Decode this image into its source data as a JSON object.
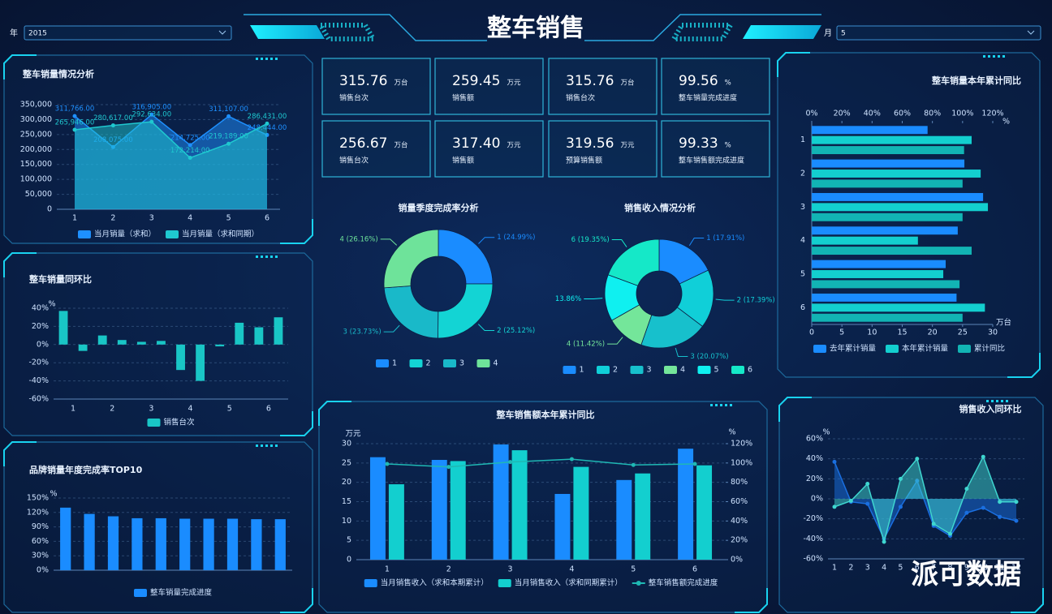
{
  "header": {
    "title": "整车销售"
  },
  "filters": [
    {
      "label": "年",
      "value": "2015"
    },
    {
      "label": "月",
      "value": "5"
    }
  ],
  "kpis": [
    {
      "value": "315.76",
      "unit": "万台",
      "label": "销售台次"
    },
    {
      "value": "259.45",
      "unit": "万元",
      "label": "销售额"
    },
    {
      "value": "315.76",
      "unit": "万台",
      "label": "销售台次"
    },
    {
      "value": "99.56",
      "unit": "%",
      "label": "整车销量完成进度"
    },
    {
      "value": "256.67",
      "unit": "万台",
      "label": "销售台次"
    },
    {
      "value": "317.40",
      "unit": "万元",
      "label": "销售额"
    },
    {
      "value": "319.56",
      "unit": "万元",
      "label": "预算销售额"
    },
    {
      "value": "99.33",
      "unit": "%",
      "label": "整车销售额完成进度"
    }
  ],
  "chart_data": [
    {
      "type": "area",
      "title": "整车销量情况分析",
      "categories": [
        "1",
        "2",
        "3",
        "4",
        "5",
        "6"
      ],
      "series": [
        {
          "name": "当月销量（求和）",
          "color": "#1e90ff",
          "values": [
            311766,
            208075,
            316905,
            214725,
            311107,
            248444
          ],
          "value_labels": [
            "311,766.00",
            "208,075.00",
            "316,905.00",
            "214,725.00",
            "311,107.00",
            "248,444.00"
          ]
        },
        {
          "name": "当月销量（求和同期）",
          "color": "#1fc8d0",
          "values": [
            265946,
            280617,
            292634,
            172214,
            219189,
            286431
          ],
          "value_labels": [
            "265,946.00",
            "280,617.00",
            "292,634.00",
            "172,214.00",
            "219,189.00",
            "286,431.00"
          ]
        }
      ],
      "ylim": [
        0,
        350000
      ],
      "yticks": [
        0,
        {
          "value": 50000,
          "label": "50,000"
        },
        {
          "value": 100000,
          "label": "100,000"
        },
        {
          "value": 150000,
          "label": "150,000"
        },
        {
          "value": 200000,
          "label": "200,000"
        },
        {
          "value": 250000,
          "label": "250,000"
        },
        {
          "value": 300000,
          "label": "300,000"
        },
        {
          "value": 350000,
          "label": "350,000"
        }
      ]
    },
    {
      "type": "bar",
      "title": "整车销量同环比",
      "categories": [
        "1",
        null,
        "2",
        null,
        "3",
        null,
        "4",
        null,
        "5",
        null,
        "6",
        null
      ],
      "series": [
        {
          "name": "销售台次",
          "color": "#19c6c6",
          "values": [
            37,
            -7,
            10,
            5,
            3,
            4,
            -28,
            -40,
            -2,
            24,
            19,
            30
          ]
        }
      ],
      "ylim": [
        -60,
        40
      ],
      "yticks": [
        {
          "value": -60,
          "label": "-60%"
        },
        {
          "value": -40,
          "label": "-40%"
        },
        {
          "value": -20,
          "label": "-20%"
        },
        {
          "value": 0,
          "label": "0%"
        },
        {
          "value": 20,
          "label": "20%"
        },
        {
          "value": 40,
          "label": "40%"
        }
      ],
      "y_label": "%"
    },
    {
      "type": "bar",
      "title": "品牌销量年度完成率TOP10",
      "categories": [
        null,
        null,
        null,
        null,
        null,
        null,
        null,
        null,
        null,
        null
      ],
      "series": [
        {
          "name": "整车销量完成进度",
          "color": "#1a8cff",
          "values": [
            130,
            117,
            112,
            108,
            108,
            107,
            107,
            107,
            106,
            106
          ]
        }
      ],
      "ylim": [
        0,
        150
      ],
      "yticks": [
        {
          "value": 0,
          "label": "0%"
        },
        {
          "value": 30,
          "label": "30%"
        },
        {
          "value": 60,
          "label": "60%"
        },
        {
          "value": 90,
          "label": "90%"
        },
        {
          "value": 120,
          "label": "120%"
        },
        {
          "value": 150,
          "label": "150%"
        }
      ],
      "y_label": "%"
    },
    {
      "type": "pie",
      "title": "销量季度完成率分析",
      "categories": [
        "1",
        "2",
        "3",
        "4"
      ],
      "values": [
        24.99,
        25.12,
        23.73,
        26.16
      ],
      "value_labels": [
        "1 (24.99%)",
        "2 (25.12%)",
        "3 (23.73%)",
        "4 (26.16%)"
      ],
      "colors": [
        "#1a8cff",
        "#13d4d4",
        "#19b9c9",
        "#6ee39a"
      ]
    },
    {
      "type": "pie",
      "title": "销售收入情况分析",
      "categories": [
        "1",
        "2",
        "3",
        "4",
        "5",
        "6"
      ],
      "values": [
        17.91,
        17.39,
        20.07,
        11.42,
        13.86,
        19.35
      ],
      "value_labels": [
        "1 (17.91%)",
        "2 (17.39%)",
        "3 (20.07%)",
        "4 (11.42%)",
        "13.86%",
        "6 (19.35%)"
      ],
      "colors": [
        "#1a8cff",
        "#10cfd8",
        "#17c0cc",
        "#74e69a",
        "#0ff0f0",
        "#15e8c8"
      ]
    },
    {
      "type": "barh",
      "title": "整车销量本年累计同比",
      "categories": [
        "1",
        "2",
        "3",
        "4",
        "5",
        "6"
      ],
      "series": [
        {
          "name": "去年累计销量",
          "color": "#1a8cff",
          "values": [
            19.2,
            25.3,
            28.4,
            24.2,
            22.2,
            24
          ]
        },
        {
          "name": "本年累计销量",
          "color": "#13cfcf",
          "values": [
            26.5,
            28,
            29.2,
            17.6,
            21.8,
            28.7
          ]
        },
        {
          "name": "累计同比",
          "color": "#12b4b4",
          "axis": "x2",
          "values": [
            101,
            100,
            100,
            106,
            98,
            100
          ]
        }
      ],
      "xlim": [
        0,
        30
      ],
      "xticks": [
        0,
        5,
        10,
        15,
        20,
        25,
        30
      ],
      "x2lim": [
        0,
        120
      ],
      "x2ticks": [
        {
          "value": 0,
          "label": "0%"
        },
        {
          "value": 20,
          "label": "20%"
        },
        {
          "value": 40,
          "label": "40%"
        },
        {
          "value": 60,
          "label": "60%"
        },
        {
          "value": 80,
          "label": "80%"
        },
        {
          "value": 100,
          "label": "100%"
        },
        {
          "value": 120,
          "label": "120%"
        }
      ],
      "x_label": "万台",
      "x2_label": "%"
    },
    {
      "type": "bar",
      "title": "整车销售额本年累计同比",
      "categories": [
        "1",
        "2",
        "3",
        "4",
        "5",
        "6"
      ],
      "series": [
        {
          "name": "当月销售收入（求和本期累计）",
          "color": "#1a8cff",
          "values": [
            26.5,
            25.8,
            29.8,
            17,
            20.6,
            28.7
          ]
        },
        {
          "name": "当月销售收入（求和同期累计）",
          "color": "#13cfcf",
          "values": [
            19.5,
            25.5,
            28.3,
            24,
            22.3,
            24.4
          ]
        },
        {
          "name": "整车销售额完成进度",
          "type": "line",
          "axis": "y2",
          "color": "#1fb8b4",
          "values": [
            99,
            96,
            101,
            104,
            98,
            99
          ]
        }
      ],
      "ylim": [
        0,
        30
      ],
      "yticks": [
        0,
        5,
        10,
        15,
        20,
        25,
        30
      ],
      "y2lim": [
        0,
        120
      ],
      "y2ticks": [
        {
          "value": 0,
          "label": "0%"
        },
        {
          "value": 20,
          "label": "20%"
        },
        {
          "value": 40,
          "label": "40%"
        },
        {
          "value": 60,
          "label": "60%"
        },
        {
          "value": 80,
          "label": "80%"
        },
        {
          "value": 100,
          "label": "100%"
        },
        {
          "value": 120,
          "label": "120%"
        }
      ],
      "y_label": "万元",
      "y2_label": "%"
    },
    {
      "type": "area",
      "title": "销售收入同环比",
      "categories": [
        "1",
        "2",
        "3",
        "4",
        "5",
        "6",
        "7",
        "8",
        "9",
        "10",
        "11",
        "12"
      ],
      "series": [
        {
          "color": "#1a6fe0",
          "values": [
            37,
            -3,
            -5,
            -40,
            -8,
            18,
            -27,
            -37,
            -14,
            -9,
            -18,
            -22
          ]
        },
        {
          "color": "#3fd6d0",
          "values": [
            -8,
            -2,
            15,
            -43,
            20,
            40,
            -25,
            -35,
            10,
            42,
            -3,
            -3
          ]
        }
      ],
      "ylim": [
        -60,
        60
      ],
      "yticks": [
        {
          "value": -60,
          "label": "-60%"
        },
        {
          "value": -40,
          "label": "-40%"
        },
        {
          "value": -20,
          "label": "-20%"
        },
        {
          "value": 0,
          "label": "0%"
        },
        {
          "value": 20,
          "label": "20%"
        },
        {
          "value": 40,
          "label": "40%"
        },
        {
          "value": 60,
          "label": "60%"
        }
      ],
      "y_label": "%"
    }
  ],
  "watermark": "派可数据"
}
